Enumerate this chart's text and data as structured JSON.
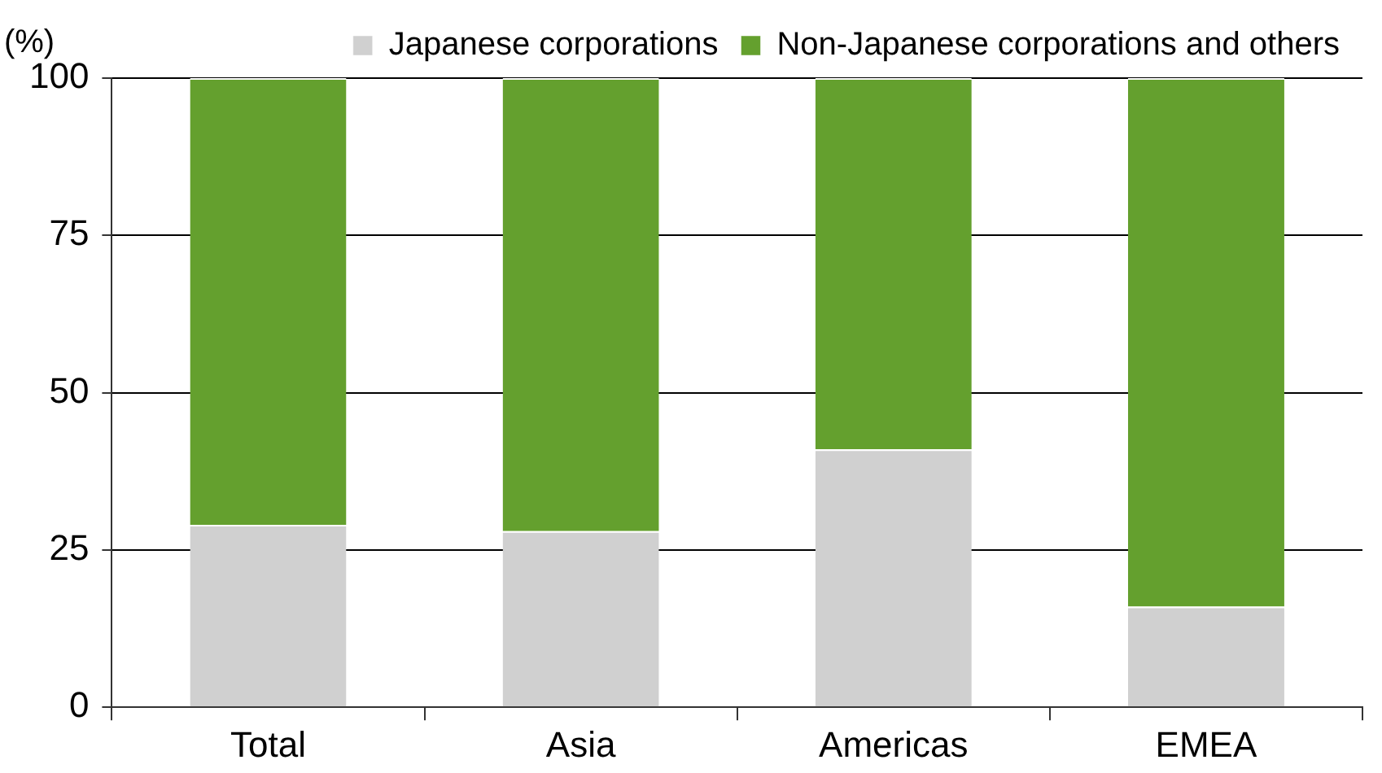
{
  "chart_data": {
    "type": "bar",
    "ylabel": "(%)",
    "categories": [
      "Total",
      "Asia",
      "Americas",
      "EMEA"
    ],
    "stacked": true,
    "series": [
      {
        "name": "Japanese corporations",
        "color": "#d0d0d0",
        "values": [
          29,
          28,
          41,
          16
        ]
      },
      {
        "name": "Non-Japanese corporations and others",
        "color": "#64a02e",
        "values": [
          71,
          72,
          59,
          84
        ]
      }
    ],
    "ylim": [
      0,
      100
    ],
    "yticks": [
      0,
      25,
      50,
      75,
      100
    ],
    "grid": "y",
    "legend": "top"
  }
}
